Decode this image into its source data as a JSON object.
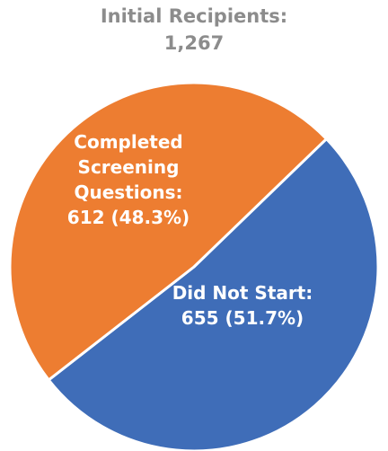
{
  "chart_data": {
    "type": "pie",
    "title": [
      "Initial Recipients:",
      "1,267"
    ],
    "categories": [
      "Completed Screening Questions:",
      "Did Not Start:"
    ],
    "values": [
      612,
      655
    ],
    "value_labels": [
      "612 (48.3%)",
      "655 (51.7%)"
    ],
    "colors": [
      "#ED7D31",
      "#3F6DB8"
    ]
  }
}
